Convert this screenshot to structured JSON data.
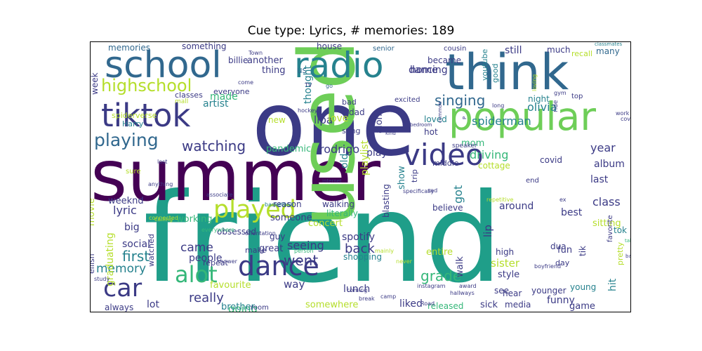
{
  "title": "Cue type: Lyrics, # memories: 189",
  "colors": {
    "dark_purple": "#440154",
    "indigo": "#3b3a85",
    "blue_slate": "#31688e",
    "teal": "#26828e",
    "green_teal": "#1f9e89",
    "green": "#35b779",
    "light_green": "#6ece58",
    "yellow_green": "#b5de2b"
  },
  "words": [
    {
      "text": "friend",
      "color": "#1f9e89"
    },
    {
      "text": "one",
      "color": "#3b3a85"
    },
    {
      "text": "summer",
      "color": "#440154"
    },
    {
      "text": "used",
      "color": "#6ece58"
    },
    {
      "text": "think",
      "color": "#31688e"
    },
    {
      "text": "school",
      "color": "#31688e"
    },
    {
      "text": "radio",
      "color": "#26828e"
    },
    {
      "text": "tiktok",
      "color": "#3b3a85"
    },
    {
      "text": "popular",
      "color": "#6ece58"
    },
    {
      "text": "video",
      "color": "#3b3a85"
    },
    {
      "text": "played",
      "color": "#b5de2b"
    },
    {
      "text": "dance",
      "color": "#3b3a85"
    },
    {
      "text": "car",
      "color": "#3b3a85"
    },
    {
      "text": "alot",
      "color": "#35b779"
    },
    {
      "text": "playing",
      "color": "#31688e"
    },
    {
      "text": "highschool",
      "color": "#b5de2b"
    },
    {
      "text": "watching",
      "color": "#3b3a85"
    },
    {
      "text": "singing",
      "color": "#31688e"
    },
    {
      "text": "memory",
      "color": "#26828e"
    },
    {
      "text": "grade",
      "color": "#35b779"
    },
    {
      "text": "first",
      "color": "#26828e"
    },
    {
      "text": "went",
      "color": "#3b3a85"
    },
    {
      "text": "back",
      "color": "#3b3a85"
    },
    {
      "text": "spiderman",
      "color": "#26828e"
    },
    {
      "text": "olivia",
      "color": "#26828e"
    },
    {
      "text": "year",
      "color": "#3b3a85"
    },
    {
      "text": "driving",
      "color": "#35b779"
    },
    {
      "text": "class",
      "color": "#3b3a85"
    },
    {
      "text": "really",
      "color": "#3b3a85"
    },
    {
      "text": "came",
      "color": "#3b3a85"
    },
    {
      "text": "rodrigo",
      "color": "#3b3a85"
    },
    {
      "text": "lyric",
      "color": "#3b3a85"
    },
    {
      "text": "going",
      "color": "#35b779"
    },
    {
      "text": "seeing",
      "color": "#3b3a85"
    },
    {
      "text": "spotify",
      "color": "#3b3a85"
    },
    {
      "text": "dancing",
      "color": "#3b3a85"
    },
    {
      "text": "memories",
      "color": "#31688e"
    },
    {
      "text": "something",
      "color": "#3b3a85"
    },
    {
      "text": "billie",
      "color": "#3b3a85"
    },
    {
      "text": "house",
      "color": "#3b3a85"
    },
    {
      "text": "senior",
      "color": "#31688e"
    },
    {
      "text": "cousin",
      "color": "#3b3a85"
    },
    {
      "text": "still",
      "color": "#3b3a85"
    },
    {
      "text": "much",
      "color": "#3b3a85"
    },
    {
      "text": "recall",
      "color": "#b5de2b"
    },
    {
      "text": "many",
      "color": "#31688e"
    },
    {
      "text": "classmates",
      "color": "#26828e"
    },
    {
      "text": "talking",
      "color": "#35b779"
    },
    {
      "text": "made",
      "color": "#35b779"
    },
    {
      "text": "another",
      "color": "#3b3a85"
    },
    {
      "text": "became",
      "color": "#3b3a85"
    },
    {
      "text": "home",
      "color": "#3b3a85"
    },
    {
      "text": "thing",
      "color": "#3b3a85"
    },
    {
      "text": "us",
      "color": "#31688e"
    },
    {
      "text": "everyone",
      "color": "#3b3a85"
    },
    {
      "text": "classes",
      "color": "#3b3a85"
    },
    {
      "text": "artist",
      "color": "#26828e"
    },
    {
      "text": "lipa",
      "color": "#3b3a85"
    },
    {
      "text": "thought",
      "color": "#26828e"
    },
    {
      "text": "dad",
      "color": "#3b3a85"
    },
    {
      "text": "bad",
      "color": "#3b3a85"
    },
    {
      "text": "love",
      "color": "#b5de2b"
    },
    {
      "text": "sang",
      "color": "#3b3a85"
    },
    {
      "text": "mom",
      "color": "#35b779"
    },
    {
      "text": "night",
      "color": "#26828e"
    },
    {
      "text": "loved",
      "color": "#26828e"
    },
    {
      "text": "hot",
      "color": "#3b3a85"
    },
    {
      "text": "pandemic",
      "color": "#35b779"
    },
    {
      "text": "middle",
      "color": "#3b3a85"
    },
    {
      "text": "play",
      "color": "#3b3a85"
    },
    {
      "text": "old",
      "color": "#26828e"
    },
    {
      "text": "playlist",
      "color": "#b5de2b"
    },
    {
      "text": "show",
      "color": "#26828e"
    },
    {
      "text": "got",
      "color": "#26828e"
    },
    {
      "text": "album",
      "color": "#3b3a85"
    },
    {
      "text": "cottage",
      "color": "#b5de2b"
    },
    {
      "text": "covid",
      "color": "#3b3a85"
    },
    {
      "text": "last",
      "color": "#3b3a85"
    },
    {
      "text": "best",
      "color": "#3b3a85"
    },
    {
      "text": "sitting",
      "color": "#b5de2b"
    },
    {
      "text": "end",
      "color": "#3b3a85"
    },
    {
      "text": "tok",
      "color": "#26828e"
    },
    {
      "text": "around",
      "color": "#3b3a85"
    },
    {
      "text": "weeknd",
      "color": "#3b3a85"
    },
    {
      "text": "movie",
      "color": "#b5de2b"
    },
    {
      "text": "big",
      "color": "#3b3a85"
    },
    {
      "text": "social",
      "color": "#3b3a85"
    },
    {
      "text": "working",
      "color": "#35b779"
    },
    {
      "text": "people",
      "color": "#3b3a85"
    },
    {
      "text": "someone",
      "color": "#3b3a85"
    },
    {
      "text": "concert",
      "color": "#b5de2b"
    },
    {
      "text": "obsessed",
      "color": "#3b3a85"
    },
    {
      "text": "believe",
      "color": "#3b3a85"
    },
    {
      "text": "make",
      "color": "#3b3a85"
    },
    {
      "text": "great",
      "color": "#3b3a85"
    },
    {
      "text": "guy",
      "color": "#3b3a85"
    },
    {
      "text": "way",
      "color": "#3b3a85"
    },
    {
      "text": "favourite",
      "color": "#b5de2b"
    },
    {
      "text": "lot",
      "color": "#3b3a85"
    },
    {
      "text": "always",
      "color": "#3b3a85"
    },
    {
      "text": "brother",
      "color": "#26828e"
    },
    {
      "text": "room",
      "color": "#3b3a85"
    },
    {
      "text": "somewhere",
      "color": "#b5de2b"
    },
    {
      "text": "lunch",
      "color": "#3b3a85"
    },
    {
      "text": "liked",
      "color": "#3b3a85"
    },
    {
      "text": "released",
      "color": "#35b779"
    },
    {
      "text": "sick",
      "color": "#3b3a85"
    },
    {
      "text": "media",
      "color": "#3b3a85"
    },
    {
      "text": "funny",
      "color": "#3b3a85"
    },
    {
      "text": "game",
      "color": "#3b3a85"
    },
    {
      "text": "sister",
      "color": "#b5de2b"
    },
    {
      "text": "style",
      "color": "#3b3a85"
    },
    {
      "text": "high",
      "color": "#3b3a85"
    },
    {
      "text": "fun",
      "color": "#3b3a85"
    },
    {
      "text": "young",
      "color": "#26828e"
    },
    {
      "text": "dua",
      "color": "#3b3a85"
    },
    {
      "text": "day",
      "color": "#3b3a85"
    },
    {
      "text": "hear",
      "color": "#3b3a85"
    },
    {
      "text": "younger",
      "color": "#3b3a85"
    },
    {
      "text": "see",
      "color": "#3b3a85"
    },
    {
      "text": "lip",
      "color": "#3b3a85"
    },
    {
      "text": "pretty",
      "color": "#b5de2b"
    },
    {
      "text": "hit",
      "color": "#26828e"
    },
    {
      "text": "favorite",
      "color": "#3b3a85"
    },
    {
      "text": "tik",
      "color": "#3b3a85"
    },
    {
      "text": "entire",
      "color": "#b5de2b"
    },
    {
      "text": "shopping",
      "color": "#26828e"
    },
    {
      "text": "walk",
      "color": "#3b3a85"
    },
    {
      "text": "reason",
      "color": "#3b3a85"
    },
    {
      "text": "blasting",
      "color": "#3b3a85"
    },
    {
      "text": "walking",
      "color": "#3b3a85"
    },
    {
      "text": "literally",
      "color": "#35b779"
    },
    {
      "text": "along",
      "color": "#3b3a85"
    },
    {
      "text": "repeat",
      "color": "#3b3a85"
    },
    {
      "text": "graduating",
      "color": "#b5de2b"
    },
    {
      "text": "watched",
      "color": "#3b3a85"
    },
    {
      "text": "eilish",
      "color": "#3b3a85"
    },
    {
      "text": "week",
      "color": "#3b3a85"
    },
    {
      "text": "spiderverse",
      "color": "#b5de2b"
    },
    {
      "text": "Harry",
      "color": "#26828e"
    },
    {
      "text": "new",
      "color": "#b5de2b"
    },
    {
      "text": "mall",
      "color": "#b5de2b"
    },
    {
      "text": "trip",
      "color": "#3b3a85"
    },
    {
      "text": "youtube",
      "color": "#26828e"
    },
    {
      "text": "good",
      "color": "#26828e"
    },
    {
      "text": "top",
      "color": "#3b3a85"
    },
    {
      "text": "ride",
      "color": "#3b3a85"
    },
    {
      "text": "excited",
      "color": "#3b3a85"
    },
    {
      "text": "go",
      "color": "#31688e"
    },
    {
      "text": "speaker",
      "color": "#3b3a85"
    },
    {
      "text": "hockey",
      "color": "#3b3a85"
    },
    {
      "text": "specifically",
      "color": "#3b3a85"
    },
    {
      "text": "sad",
      "color": "#3b3a85"
    },
    {
      "text": "sure",
      "color": "#b5de2b"
    },
    {
      "text": "boyfriend",
      "color": "#3b3a85"
    },
    {
      "text": "ex",
      "color": "#3b3a85"
    },
    {
      "text": "instagram",
      "color": "#3b3a85"
    },
    {
      "text": "award",
      "color": "#3b3a85"
    },
    {
      "text": "hallways",
      "color": "#3b3a85"
    },
    {
      "text": "Road",
      "color": "#3b3a85"
    },
    {
      "text": "break",
      "color": "#3b3a85"
    },
    {
      "text": "camp",
      "color": "#3b3a85"
    },
    {
      "text": "coming",
      "color": "#3b3a85"
    },
    {
      "text": "mainly",
      "color": "#b5de2b"
    },
    {
      "text": "person",
      "color": "#35b779"
    },
    {
      "text": "orientation",
      "color": "#3b3a85"
    },
    {
      "text": "everywhere",
      "color": "#35b779"
    },
    {
      "text": "basketball",
      "color": "#26828e"
    },
    {
      "text": "associate",
      "color": "#3b3a85"
    },
    {
      "text": "calling",
      "color": "#b5de2b"
    },
    {
      "text": "connected",
      "color": "#b5de2b"
    },
    {
      "text": "anything",
      "color": "#3b3a85"
    },
    {
      "text": "study",
      "color": "#3b3a85"
    },
    {
      "text": "shower",
      "color": "#3b3a85"
    },
    {
      "text": "Town",
      "color": "#3b3a85"
    },
    {
      "text": "come",
      "color": "#3b3a85"
    },
    {
      "text": "TV",
      "color": "#3b3a85"
    },
    {
      "text": "loving",
      "color": "#b5de2b"
    },
    {
      "text": "gym",
      "color": "#3b3a85"
    },
    {
      "text": "long",
      "color": "#3b3a85"
    },
    {
      "text": "bedroom",
      "color": "#3b3a85"
    },
    {
      "text": "common",
      "color": "#3b3a85"
    },
    {
      "text": "kind",
      "color": "#3b3a85"
    },
    {
      "text": "internet",
      "color": "#3b3a85"
    },
    {
      "text": "repetitive",
      "color": "#b5de2b"
    },
    {
      "text": "work",
      "color": "#3b3a85"
    },
    {
      "text": "table",
      "color": "#35b779"
    },
    {
      "text": "bar",
      "color": "#3b3a85"
    },
    {
      "text": "cover",
      "color": "#3b3a85"
    },
    {
      "text": "lost",
      "color": "#3b3a85"
    },
    {
      "text": "never",
      "color": "#b5de2b"
    },
    {
      "text": "P",
      "color": "#3b3a85"
    },
    {
      "text": "iii",
      "color": "#b5de2b"
    },
    {
      "text": "x",
      "color": "#3b3a85"
    },
    {
      "text": "sam",
      "color": "#3b3a85"
    },
    {
      "text": "fully",
      "color": "#b5de2b"
    }
  ]
}
